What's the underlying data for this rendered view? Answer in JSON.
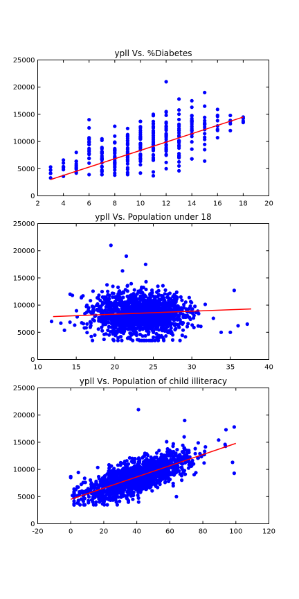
{
  "chart_data": [
    {
      "type": "scatter",
      "title": "ypll Vs. %Diabetes",
      "xlabel": "",
      "ylabel": "",
      "xlim": [
        2,
        20
      ],
      "ylim": [
        0,
        25000
      ],
      "xticks": [
        2,
        4,
        6,
        8,
        10,
        12,
        14,
        16,
        18,
        20
      ],
      "yticks": [
        0,
        5000,
        10000,
        15000,
        20000,
        25000
      ],
      "grid": false,
      "point_color": "#0000ff",
      "line_color": "#ff0000",
      "trend": {
        "x": [
          3,
          18
        ],
        "y": [
          3000,
          14500
        ]
      },
      "clusters": [
        {
          "x": 3,
          "ymin": 3300,
          "ymax": 5300,
          "n": 3
        },
        {
          "x": 4,
          "ymin": 3600,
          "ymax": 6600,
          "n": 6
        },
        {
          "x": 5,
          "ymin": 4200,
          "ymax": 8000,
          "n": 10
        },
        {
          "x": 6,
          "ymin": 3900,
          "ymax": 12500,
          "n": 16
        },
        {
          "x": 7,
          "ymin": 3900,
          "ymax": 10500,
          "n": 22
        },
        {
          "x": 8,
          "ymin": 3800,
          "ymax": 11000,
          "n": 26
        },
        {
          "x": 9,
          "ymin": 3900,
          "ymax": 12400,
          "n": 30
        },
        {
          "x": 10,
          "ymin": 4200,
          "ymax": 13700,
          "n": 34
        },
        {
          "x": 11,
          "ymin": 4400,
          "ymax": 15000,
          "n": 34
        },
        {
          "x": 12,
          "ymin": 5000,
          "ymax": 15500,
          "n": 30
        },
        {
          "x": 13,
          "ymin": 5500,
          "ymax": 15800,
          "n": 26
        },
        {
          "x": 14,
          "ymin": 6800,
          "ymax": 16300,
          "n": 20
        },
        {
          "x": 15,
          "ymin": 8500,
          "ymax": 16500,
          "n": 12
        },
        {
          "x": 16,
          "ymin": 10700,
          "ymax": 15900,
          "n": 6
        },
        {
          "x": 17,
          "ymin": 12000,
          "ymax": 14800,
          "n": 4
        },
        {
          "x": 18,
          "ymin": 13500,
          "ymax": 14500,
          "n": 2
        }
      ],
      "outliers": [
        {
          "x": 12,
          "y": 21000
        },
        {
          "x": 6,
          "y": 14000
        },
        {
          "x": 8,
          "y": 12800
        },
        {
          "x": 13,
          "y": 17800
        },
        {
          "x": 14,
          "y": 17500
        },
        {
          "x": 15,
          "y": 19000
        },
        {
          "x": 15,
          "y": 6400
        },
        {
          "x": 13,
          "y": 4600
        },
        {
          "x": 11,
          "y": 3700
        }
      ]
    },
    {
      "type": "scatter",
      "title": "ypll Vs. Population under 18",
      "xlabel": "",
      "ylabel": "",
      "xlim": [
        10,
        40
      ],
      "ylim": [
        0,
        25000
      ],
      "xticks": [
        10,
        15,
        20,
        25,
        30,
        35,
        40
      ],
      "yticks": [
        0,
        5000,
        10000,
        15000,
        20000,
        25000
      ],
      "grid": false,
      "point_color": "#0000ff",
      "line_color": "#ff0000",
      "trend": {
        "x": [
          12,
          37.7
        ],
        "y": [
          7900,
          9300
        ]
      },
      "cloud": {
        "n": 1600,
        "x_mean": 23.3,
        "x_sd": 2.9,
        "y_mean": 8300,
        "y_sd": 1900,
        "x_min": 13,
        "x_max": 38,
        "y_min": 3500,
        "y_max": 16500
      },
      "outliers": [
        {
          "x": 19.5,
          "y": 21000
        },
        {
          "x": 21.5,
          "y": 19000
        },
        {
          "x": 21,
          "y": 16300
        },
        {
          "x": 24,
          "y": 17500
        },
        {
          "x": 11.8,
          "y": 7000
        },
        {
          "x": 14.2,
          "y": 12000
        },
        {
          "x": 14.5,
          "y": 11800
        },
        {
          "x": 35.5,
          "y": 12700
        },
        {
          "x": 37.2,
          "y": 6500
        },
        {
          "x": 36,
          "y": 6200
        },
        {
          "x": 35,
          "y": 5000
        },
        {
          "x": 33.8,
          "y": 5000
        }
      ]
    },
    {
      "type": "scatter",
      "title": "ypll Vs. Population of child illiteracy",
      "xlabel": "",
      "ylabel": "",
      "xlim": [
        -20,
        120
      ],
      "ylim": [
        0,
        25000
      ],
      "xticks": [
        -20,
        0,
        20,
        40,
        60,
        80,
        100,
        120
      ],
      "yticks": [
        0,
        5000,
        10000,
        15000,
        20000,
        25000
      ],
      "grid": false,
      "point_color": "#0000ff",
      "line_color": "#ff0000",
      "trend": {
        "x": [
          0,
          100
        ],
        "y": [
          4500,
          14800
        ]
      },
      "band": {
        "n": 1700,
        "x_mean": 40,
        "x_sd": 15,
        "x_min": 2,
        "x_max": 100,
        "intercept": 4500,
        "slope": 103,
        "resid_sd": 1400
      },
      "outliers": [
        {
          "x": 41,
          "y": 21000
        },
        {
          "x": 69,
          "y": 19000
        },
        {
          "x": 99,
          "y": 17800
        },
        {
          "x": 94,
          "y": 17300
        },
        {
          "x": 0,
          "y": 8700
        },
        {
          "x": 0,
          "y": 8500
        },
        {
          "x": 1,
          "y": 5200
        },
        {
          "x": 4,
          "y": 3800
        },
        {
          "x": 99,
          "y": 9300
        },
        {
          "x": 98,
          "y": 11300
        },
        {
          "x": 64,
          "y": 5000
        }
      ]
    }
  ]
}
